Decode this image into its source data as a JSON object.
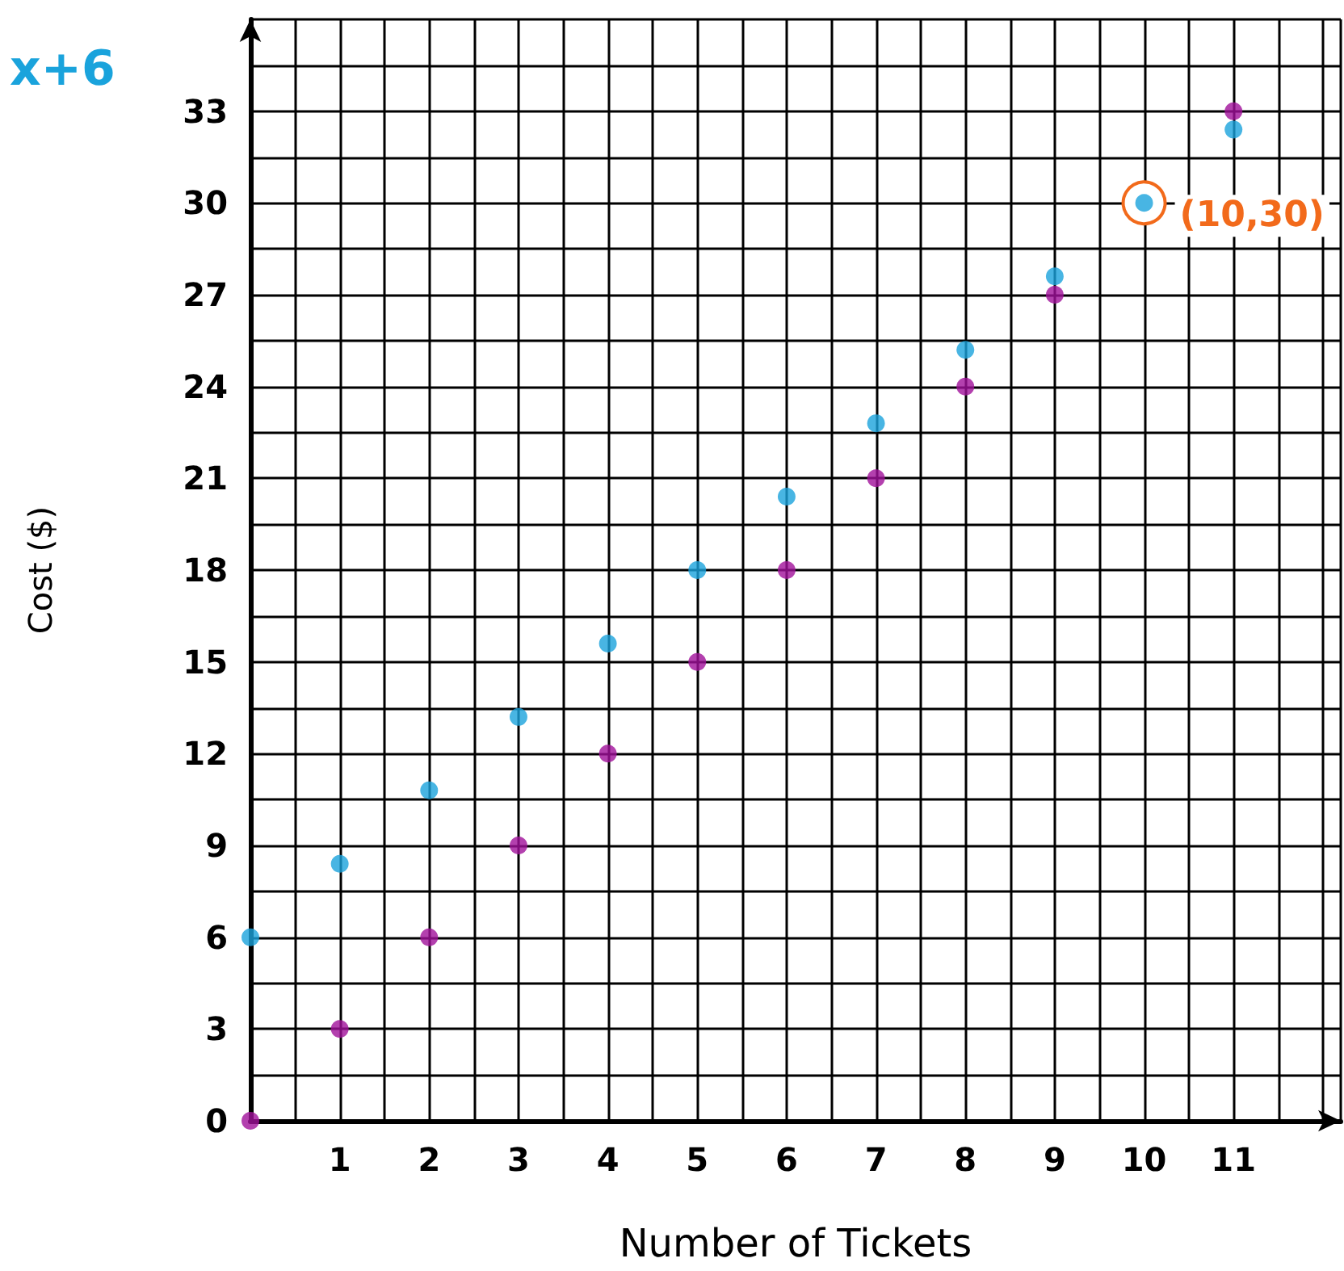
{
  "chart_data": {
    "type": "scatter",
    "xlabel": "Number of Tickets",
    "ylabel": "Cost ($)",
    "annotations": [
      "x+6",
      {
        "text": "(10,30)",
        "x": 10,
        "y": 30
      }
    ],
    "x": [
      0,
      1,
      2,
      3,
      4,
      5,
      6,
      7,
      8,
      9,
      10,
      11
    ],
    "series": [
      {
        "color": "#1aa3dc",
        "values": [
          6,
          8.4,
          10.8,
          13.2,
          15.6,
          18,
          20.4,
          22.8,
          25.2,
          27.6,
          30,
          32.4
        ]
      },
      {
        "color": "#a0109a",
        "values": [
          0,
          3,
          6,
          9,
          12,
          15,
          18,
          21,
          24,
          27,
          null,
          33
        ]
      }
    ],
    "xlim": [
      0,
      12.2
    ],
    "ylim": [
      0,
      36
    ],
    "xticks": [
      {
        "value": 0,
        "label": null
      },
      1,
      2,
      3,
      4,
      5,
      6,
      7,
      8,
      9,
      10,
      11
    ],
    "yticks": [
      0,
      3,
      6,
      9,
      12,
      15,
      18,
      21,
      24,
      27,
      30,
      33
    ],
    "grid": true,
    "marker": "circle"
  }
}
